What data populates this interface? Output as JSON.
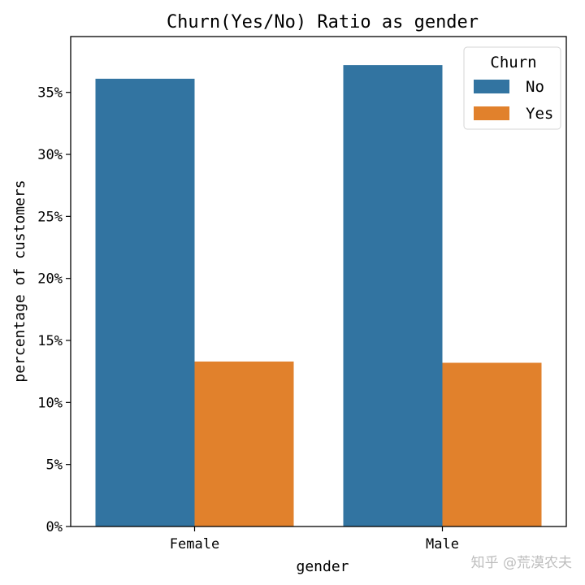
{
  "chart_data": {
    "type": "bar",
    "title": "Churn(Yes/No) Ratio as gender",
    "xlabel": "gender",
    "ylabel": "percentage of customers",
    "categories": [
      "Female",
      "Male"
    ],
    "series": [
      {
        "name": "No",
        "color": "#3274a1",
        "values": [
          36.1,
          37.2
        ]
      },
      {
        "name": "Yes",
        "color": "#e1812c",
        "values": [
          13.3,
          13.2
        ]
      }
    ],
    "ylim": [
      0,
      39.5
    ],
    "yticks": [
      0,
      5,
      10,
      15,
      20,
      25,
      30,
      35
    ],
    "ytick_labels": [
      "0%",
      "5%",
      "10%",
      "15%",
      "20%",
      "25%",
      "30%",
      "35%"
    ],
    "legend": {
      "title": "Churn",
      "position": "top-right"
    },
    "grid": false
  },
  "watermark": "知乎 @荒漠农夫"
}
